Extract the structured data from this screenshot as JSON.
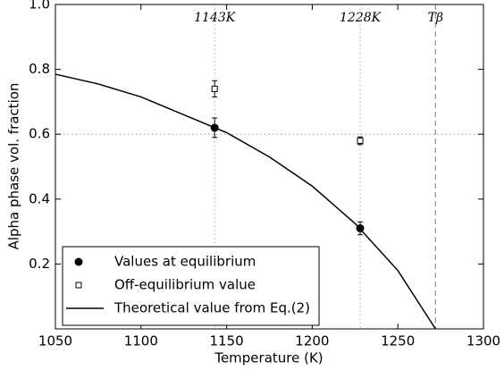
{
  "chart_data": {
    "type": "scatter",
    "x_label": "Temperature (K)",
    "y_label": "Alpha phase vol. fraction",
    "xlim": [
      1050,
      1300
    ],
    "xticks": [
      1050,
      1100,
      1150,
      1200,
      1250,
      1300
    ],
    "ylim": [
      0,
      1
    ],
    "yticks": [
      0.2,
      0.4,
      0.6,
      0.8,
      {
        "value": 1,
        "label": "1.0"
      }
    ],
    "hlines": [
      0.6
    ],
    "annotations": [
      {
        "x": 1143,
        "label": "1143K",
        "style": "dotted"
      },
      {
        "x": 1228,
        "label": "1228K",
        "style": "dotted"
      },
      {
        "x": 1272,
        "label": "Tβ",
        "style": "dashed"
      }
    ],
    "legend": "lower left",
    "series": [
      {
        "name": "Values at equilibrium",
        "marker": "filled-circle",
        "color": "#000000",
        "x": [
          1143,
          1228
        ],
        "values": [
          0.62,
          0.31
        ],
        "errors": [
          0.03,
          0.02
        ]
      },
      {
        "name": "Off-equilibrium value",
        "marker": "open-square",
        "color": "#000000",
        "x": [
          1143,
          1228
        ],
        "values": [
          0.74,
          0.58
        ],
        "errors": [
          0.025,
          0.012
        ]
      },
      {
        "name": "Theoretical value from Eq.(2)",
        "marker": "line",
        "color": "#000000",
        "x": [
          1050,
          1075,
          1100,
          1125,
          1150,
          1175,
          1200,
          1225,
          1250,
          1272
        ],
        "values": [
          0.785,
          0.755,
          0.715,
          0.66,
          0.605,
          0.53,
          0.44,
          0.325,
          0.18,
          0.0
        ]
      }
    ]
  }
}
